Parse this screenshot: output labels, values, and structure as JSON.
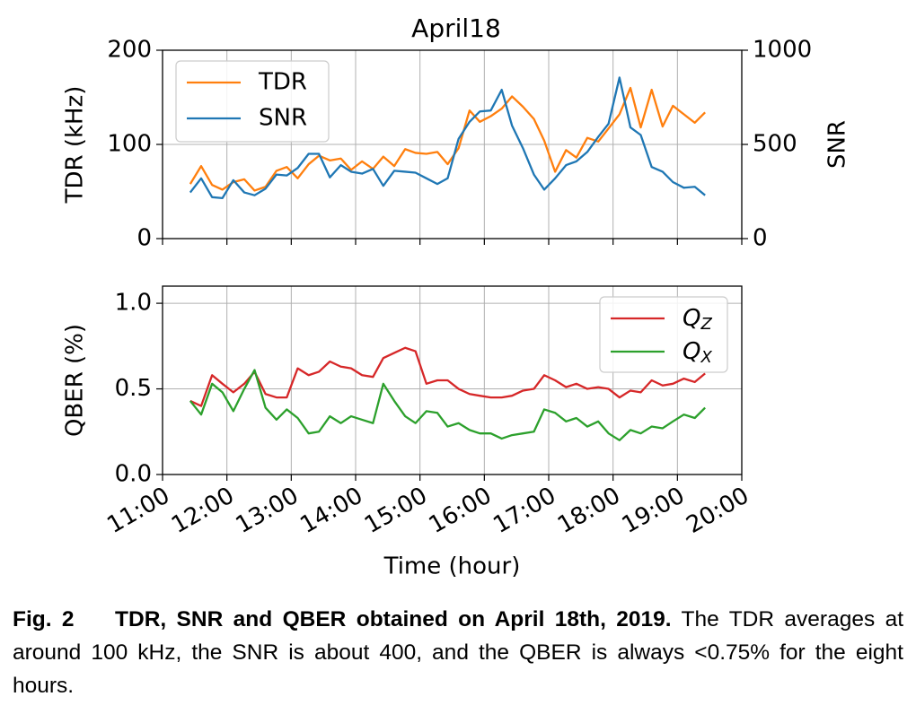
{
  "chart_data": [
    {
      "type": "line",
      "title": "April18",
      "ylabel": "TDR (kHz)",
      "y2label": "SNR",
      "x": [
        11.43,
        11.6,
        11.77,
        11.93,
        12.1,
        12.27,
        12.43,
        12.6,
        12.77,
        12.93,
        13.1,
        13.27,
        13.43,
        13.6,
        13.77,
        13.93,
        14.1,
        14.27,
        14.43,
        14.6,
        14.77,
        14.93,
        15.1,
        15.27,
        15.43,
        15.6,
        15.77,
        15.93,
        16.1,
        16.27,
        16.43,
        16.6,
        16.77,
        16.93,
        17.1,
        17.27,
        17.43,
        17.6,
        17.77,
        17.93,
        18.1,
        18.27,
        18.43,
        18.6,
        18.77,
        18.93,
        19.1,
        19.27,
        19.43
      ],
      "series": [
        {
          "name": "TDR",
          "color": "#ff7f0e",
          "values": [
            58,
            77,
            57,
            52,
            60,
            63,
            51,
            55,
            72,
            76,
            64,
            79,
            88,
            83,
            85,
            73,
            82,
            74,
            87,
            77,
            95,
            91,
            90,
            92,
            79,
            96,
            136,
            124,
            130,
            138,
            151,
            140,
            127,
            104,
            71,
            94,
            86,
            107,
            103,
            117,
            132,
            160,
            118,
            158,
            119,
            141,
            132,
            123,
            134
          ]
        },
        {
          "name": "SNR",
          "color": "#1f77b4",
          "axis": "y2",
          "values": [
            245,
            320,
            220,
            215,
            310,
            245,
            230,
            265,
            340,
            335,
            375,
            450,
            450,
            325,
            390,
            355,
            345,
            370,
            280,
            360,
            355,
            350,
            320,
            290,
            320,
            530,
            620,
            675,
            680,
            790,
            600,
            480,
            340,
            260,
            320,
            390,
            410,
            460,
            540,
            610,
            855,
            590,
            550,
            380,
            355,
            300,
            270,
            275,
            230
          ]
        }
      ],
      "ylim": [
        0,
        200
      ],
      "yticks": [
        0,
        100,
        200
      ],
      "y2lim": [
        0,
        1000
      ],
      "y2ticks": [
        0,
        500,
        1000
      ],
      "grid": true,
      "legend": "upper left"
    },
    {
      "type": "line",
      "ylabel": "QBER (%)",
      "xlabel": "Time (hour)",
      "x": [
        11.43,
        11.6,
        11.77,
        11.93,
        12.1,
        12.27,
        12.43,
        12.6,
        12.77,
        12.93,
        13.1,
        13.27,
        13.43,
        13.6,
        13.77,
        13.93,
        14.1,
        14.27,
        14.43,
        14.6,
        14.77,
        14.93,
        15.1,
        15.27,
        15.43,
        15.6,
        15.77,
        15.93,
        16.1,
        16.27,
        16.43,
        16.6,
        16.77,
        16.93,
        17.1,
        17.27,
        17.43,
        17.6,
        17.77,
        17.93,
        18.1,
        18.27,
        18.43,
        18.6,
        18.77,
        18.93,
        19.1,
        19.27,
        19.43
      ],
      "series": [
        {
          "name": "QZ",
          "color": "#d62728",
          "values": [
            0.43,
            0.4,
            0.58,
            0.53,
            0.48,
            0.53,
            0.6,
            0.47,
            0.45,
            0.45,
            0.62,
            0.58,
            0.6,
            0.66,
            0.63,
            0.62,
            0.58,
            0.57,
            0.68,
            0.71,
            0.74,
            0.72,
            0.53,
            0.55,
            0.55,
            0.5,
            0.47,
            0.46,
            0.45,
            0.45,
            0.46,
            0.49,
            0.5,
            0.58,
            0.55,
            0.51,
            0.53,
            0.5,
            0.51,
            0.5,
            0.45,
            0.49,
            0.48,
            0.55,
            0.52,
            0.53,
            0.56,
            0.54,
            0.59
          ]
        },
        {
          "name": "QX",
          "color": "#2ca02c",
          "values": [
            0.43,
            0.35,
            0.53,
            0.48,
            0.37,
            0.5,
            0.61,
            0.39,
            0.32,
            0.38,
            0.33,
            0.24,
            0.25,
            0.34,
            0.3,
            0.34,
            0.32,
            0.3,
            0.53,
            0.43,
            0.34,
            0.3,
            0.37,
            0.36,
            0.28,
            0.3,
            0.26,
            0.24,
            0.24,
            0.21,
            0.23,
            0.24,
            0.25,
            0.38,
            0.36,
            0.31,
            0.33,
            0.28,
            0.31,
            0.24,
            0.2,
            0.26,
            0.24,
            0.28,
            0.27,
            0.31,
            0.35,
            0.33,
            0.39
          ]
        }
      ],
      "xlim": [
        11,
        20
      ],
      "xticks": [
        {
          "value": 11,
          "label": "11:00"
        },
        {
          "value": 12,
          "label": "12:00"
        },
        {
          "value": 13,
          "label": "13:00"
        },
        {
          "value": 14,
          "label": "14:00"
        },
        {
          "value": 15,
          "label": "15:00"
        },
        {
          "value": 16,
          "label": "16:00"
        },
        {
          "value": 17,
          "label": "17:00"
        },
        {
          "value": 18,
          "label": "18:00"
        },
        {
          "value": 19,
          "label": "19:00"
        },
        {
          "value": 20,
          "label": "20:00"
        }
      ],
      "ylim": [
        0,
        1.1
      ],
      "yticks": [
        {
          "value": 0,
          "label": "0.0"
        },
        {
          "value": 0.5,
          "label": "0.5"
        },
        {
          "value": 1,
          "label": "1.0"
        }
      ],
      "grid": true,
      "legend": "upper right"
    }
  ],
  "caption": {
    "label": "Fig. 2",
    "title": "TDR, SNR and QBER obtained on April 18th, 2019.",
    "text": "The TDR averages at around 100 kHz, the SNR is about 400, and the QBER is always <0.75% for the eight hours."
  }
}
